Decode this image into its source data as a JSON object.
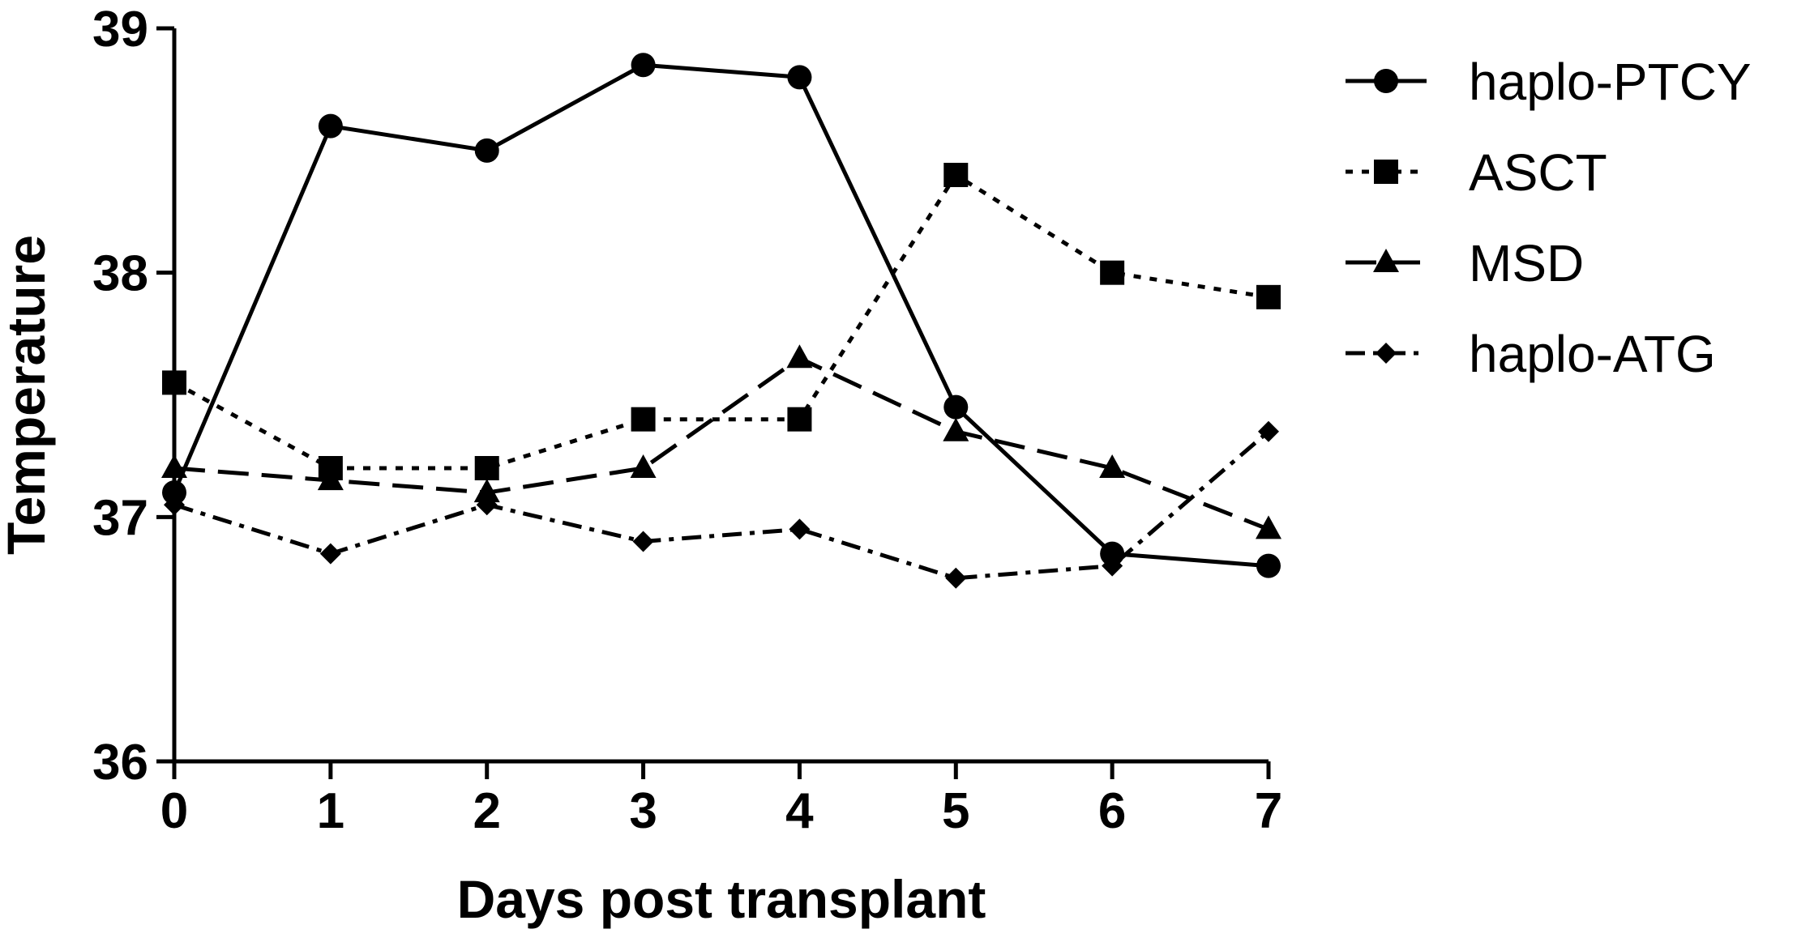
{
  "chart_data": {
    "type": "line",
    "title": "",
    "xlabel": "Days post transplant",
    "ylabel": "Temperature",
    "x": [
      0,
      1,
      2,
      3,
      4,
      5,
      6,
      7
    ],
    "xlim": [
      0,
      7
    ],
    "ylim": [
      36,
      39
    ],
    "xticks": [
      0,
      1,
      2,
      3,
      4,
      5,
      6,
      7
    ],
    "yticks": [
      36,
      37,
      38,
      39
    ],
    "grid": false,
    "legend_position": "top-right, outside plot",
    "series": [
      {
        "name": "haplo-PTCY",
        "marker": "circle",
        "line_style": "solid",
        "color": "#000000",
        "values": [
          37.1,
          38.6,
          38.5,
          38.85,
          38.8,
          37.45,
          36.85,
          36.8
        ]
      },
      {
        "name": "ASCT",
        "marker": "square",
        "line_style": "dotted",
        "color": "#000000",
        "values": [
          37.55,
          37.2,
          37.2,
          37.4,
          37.4,
          38.4,
          38.0,
          37.9
        ]
      },
      {
        "name": "MSD",
        "marker": "triangle",
        "line_style": "long-dash",
        "color": "#000000",
        "values": [
          37.2,
          37.15,
          37.1,
          37.2,
          37.65,
          37.35,
          37.2,
          36.95
        ]
      },
      {
        "name": "haplo-ATG",
        "marker": "diamond",
        "line_style": "dash-dot",
        "color": "#000000",
        "values": [
          37.05,
          36.85,
          37.05,
          36.9,
          36.95,
          36.75,
          36.8,
          37.35
        ]
      }
    ]
  }
}
